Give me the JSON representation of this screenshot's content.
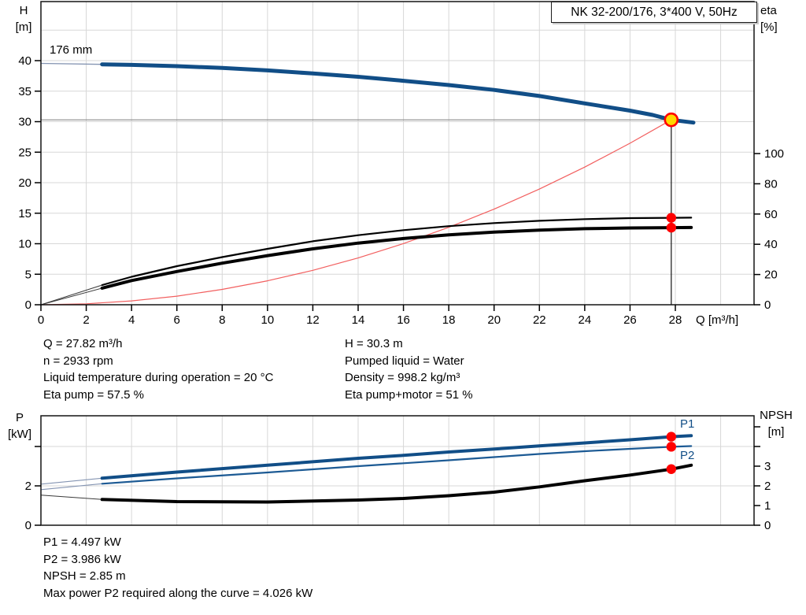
{
  "header": {
    "title_box": "NK 32-200/176, 3*400 V, 50Hz"
  },
  "operating_point": {
    "left_lines": [
      "Q = 27.82 m³/h",
      "n = 2933 rpm",
      "Liquid temperature during operation = 20 °C",
      "Eta pump = 57.5 %"
    ],
    "right_lines": [
      "H = 30.3 m",
      "Pumped liquid = Water",
      "Density = 998.2 kg/m³",
      "Eta pump+motor = 51 %"
    ]
  },
  "power_results": {
    "lines": [
      "P1 = 4.497 kW",
      "P2 = 3.986 kW",
      "NPSH = 2.85 m",
      "Max power P2 required along the curve = 4.026 kW"
    ]
  },
  "colors": {
    "curve_blue": "#114e87",
    "curve_black": "#000000",
    "system_red": "#f25f5f",
    "dot_red": "#ff0000",
    "duty_yellow": "#ffd800",
    "grid": "#d7d7d7",
    "duty_gray": "#8a8a8a"
  },
  "chart_data": [
    {
      "type": "line",
      "name": "qh-eta-chart",
      "title": "NK 32-200/176, 3*400 V, 50Hz",
      "annotation": "176 mm",
      "x_axis": {
        "label": "Q [m³/h]",
        "min": 0,
        "max": 31.5,
        "ticks": [
          0,
          2,
          4,
          6,
          8,
          10,
          12,
          14,
          16,
          18,
          20,
          22,
          24,
          26,
          28
        ],
        "tick_labels": [
          "0",
          "2",
          "4",
          "6",
          "8",
          "10",
          "12",
          "14",
          "16",
          "18",
          "20",
          "22",
          "24",
          "26",
          "28"
        ]
      },
      "y_left": {
        "label": "H",
        "unit": "[m]",
        "min": 0,
        "max": 49.7,
        "ticks": [
          0,
          5,
          10,
          15,
          20,
          25,
          30,
          35,
          40
        ],
        "tick_labels": [
          "0",
          "5",
          "10",
          "15",
          "20",
          "25",
          "30",
          "35",
          "40"
        ],
        "gridlines": [
          5,
          10,
          15,
          20,
          25,
          30,
          35,
          40,
          45
        ]
      },
      "y_right": {
        "label": "eta",
        "unit": "[%]",
        "min": 0,
        "max": 200,
        "ticks": [
          0,
          20,
          40,
          60,
          80,
          100
        ],
        "tick_labels": [
          "0",
          "20",
          "40",
          "60",
          "80",
          "100"
        ]
      },
      "grid_v": [
        2,
        4,
        6,
        8,
        10,
        12,
        14,
        16,
        18,
        20,
        22,
        24,
        26,
        28,
        30
      ],
      "duty_point": {
        "q": 27.82,
        "h": 30.3
      },
      "series": [
        {
          "name": "head-curve-ext",
          "axis": "left",
          "color": "#8494b2",
          "width": 1.3,
          "points": [
            [
              0,
              39.55
            ],
            [
              2.7,
              39.4
            ]
          ]
        },
        {
          "name": "head-curve",
          "axis": "left",
          "color": "#114e87",
          "width": 5,
          "points": [
            [
              2.7,
              39.4
            ],
            [
              4,
              39.3
            ],
            [
              6,
              39.1
            ],
            [
              8,
              38.8
            ],
            [
              10,
              38.4
            ],
            [
              12,
              37.9
            ],
            [
              14,
              37.35
            ],
            [
              16,
              36.7
            ],
            [
              18,
              36.0
            ],
            [
              20,
              35.2
            ],
            [
              22,
              34.2
            ],
            [
              24,
              33.0
            ],
            [
              26,
              31.8
            ],
            [
              27,
              31.1
            ],
            [
              27.82,
              30.3
            ],
            [
              28.8,
              29.85
            ]
          ]
        },
        {
          "name": "system-curve",
          "axis": "left",
          "color": "#f25f5f",
          "width": 1.2,
          "points": [
            [
              0,
              0
            ],
            [
              2,
              0.16
            ],
            [
              4,
              0.63
            ],
            [
              6,
              1.41
            ],
            [
              8,
              2.51
            ],
            [
              10,
              3.92
            ],
            [
              12,
              5.64
            ],
            [
              14,
              7.67
            ],
            [
              16,
              10.02
            ],
            [
              18,
              12.68
            ],
            [
              20,
              15.66
            ],
            [
              22,
              18.95
            ],
            [
              24,
              22.55
            ],
            [
              26,
              26.47
            ],
            [
              27.82,
              30.3
            ]
          ]
        },
        {
          "name": "eta-pump-ext",
          "axis": "right",
          "color": "#3a3a3a",
          "width": 1,
          "points": [
            [
              0,
              0
            ],
            [
              2.7,
              13
            ]
          ]
        },
        {
          "name": "eta-pump-curve",
          "axis": "right",
          "color": "#000000",
          "width": 2.2,
          "points": [
            [
              2.7,
              13
            ],
            [
              4,
              18.5
            ],
            [
              6,
              25.5
            ],
            [
              8,
              31.5
            ],
            [
              10,
              37
            ],
            [
              12,
              42
            ],
            [
              14,
              46
            ],
            [
              16,
              49.3
            ],
            [
              18,
              52
            ],
            [
              20,
              54
            ],
            [
              22,
              55.5
            ],
            [
              24,
              56.6
            ],
            [
              26,
              57.3
            ],
            [
              27.82,
              57.5
            ],
            [
              28.7,
              57.6
            ]
          ]
        },
        {
          "name": "eta-pump-motor-ext",
          "axis": "right",
          "color": "#3a3a3a",
          "width": 1,
          "points": [
            [
              0,
              0
            ],
            [
              2.7,
              11
            ]
          ]
        },
        {
          "name": "eta-pump-motor-curve",
          "axis": "right",
          "color": "#000000",
          "width": 4,
          "points": [
            [
              2.7,
              11
            ],
            [
              4,
              16
            ],
            [
              6,
              22
            ],
            [
              8,
              27.5
            ],
            [
              10,
              32.5
            ],
            [
              12,
              37
            ],
            [
              14,
              40.8
            ],
            [
              16,
              43.8
            ],
            [
              18,
              46.2
            ],
            [
              20,
              48
            ],
            [
              22,
              49.4
            ],
            [
              24,
              50.3
            ],
            [
              26,
              50.8
            ],
            [
              27.82,
              51
            ],
            [
              28.7,
              51.1
            ]
          ]
        }
      ],
      "markers": [
        {
          "name": "duty-point-marker",
          "axis": "left",
          "x": 27.82,
          "y": 30.3,
          "r": 8,
          "fill": "#ffd800",
          "stroke": "#ff0000",
          "stroke_width": 2.6
        },
        {
          "name": "eta-pump-point",
          "axis": "right",
          "x": 27.82,
          "y": 57.5,
          "r": 6.2,
          "fill": "#ff0000"
        },
        {
          "name": "eta-pump-motor-point",
          "axis": "right",
          "x": 27.82,
          "y": 51,
          "r": 6.2,
          "fill": "#ff0000"
        }
      ]
    },
    {
      "type": "line",
      "name": "power-npsh-chart",
      "x_axis": {
        "label": "",
        "min": 0,
        "max": 31.5,
        "ticks": [],
        "tick_labels": []
      },
      "y_left": {
        "label": "P",
        "unit": "[kW]",
        "min": 0,
        "max": 5.56,
        "ticks": [
          0,
          2,
          4
        ],
        "tick_labels": [
          "0",
          "2",
          ""
        ],
        "gridlines": [
          2,
          4
        ]
      },
      "y_right": {
        "label": "NPSH",
        "unit": "[m]",
        "min": 0,
        "max": 5.56,
        "ticks": [
          0,
          1,
          2,
          3,
          4,
          5
        ],
        "tick_labels": [
          "0",
          "1",
          "2",
          "3",
          "",
          ""
        ]
      },
      "grid_v": [
        2,
        4,
        6,
        8,
        10,
        12,
        14,
        16,
        18,
        20,
        22,
        24,
        26,
        28,
        30
      ],
      "series": [
        {
          "name": "p1-curve-ext",
          "axis": "left",
          "color": "#8494b2",
          "width": 1.1,
          "points": [
            [
              0,
              2.09
            ],
            [
              2.7,
              2.39
            ]
          ]
        },
        {
          "name": "p1-curve",
          "axis": "left",
          "color": "#114e87",
          "width": 4,
          "points": [
            [
              2.7,
              2.39
            ],
            [
              6,
              2.7
            ],
            [
              10,
              3.05
            ],
            [
              14,
              3.4
            ],
            [
              16,
              3.55
            ],
            [
              18,
              3.72
            ],
            [
              20,
              3.87
            ],
            [
              22,
              4.03
            ],
            [
              24,
              4.18
            ],
            [
              26,
              4.34
            ],
            [
              27.82,
              4.497
            ],
            [
              28.7,
              4.55
            ]
          ]
        },
        {
          "name": "p2-curve-ext",
          "axis": "left",
          "color": "#8494b2",
          "width": 1.1,
          "points": [
            [
              0,
              1.81
            ],
            [
              2.7,
              2.11
            ]
          ]
        },
        {
          "name": "p2-curve",
          "axis": "left",
          "color": "#1c5a94",
          "width": 2.2,
          "points": [
            [
              2.7,
              2.11
            ],
            [
              6,
              2.38
            ],
            [
              10,
              2.68
            ],
            [
              14,
              3.0
            ],
            [
              16,
              3.15
            ],
            [
              18,
              3.3
            ],
            [
              20,
              3.46
            ],
            [
              22,
              3.62
            ],
            [
              24,
              3.76
            ],
            [
              26,
              3.88
            ],
            [
              27.82,
              3.986
            ],
            [
              28.7,
              4.02
            ]
          ]
        },
        {
          "name": "npsh-curve-ext",
          "axis": "right",
          "color": "#3a3a3a",
          "width": 1,
          "points": [
            [
              0,
              1.53
            ],
            [
              2.7,
              1.31
            ]
          ]
        },
        {
          "name": "npsh-curve",
          "axis": "right",
          "color": "#000000",
          "width": 4,
          "points": [
            [
              2.7,
              1.31
            ],
            [
              6,
              1.2
            ],
            [
              10,
              1.18
            ],
            [
              14,
              1.28
            ],
            [
              16,
              1.36
            ],
            [
              18,
              1.5
            ],
            [
              20,
              1.68
            ],
            [
              22,
              1.95
            ],
            [
              24,
              2.26
            ],
            [
              26,
              2.55
            ],
            [
              27.82,
              2.85
            ],
            [
              28.7,
              3.05
            ]
          ]
        }
      ],
      "markers": [
        {
          "name": "p1-point",
          "axis": "left",
          "x": 27.82,
          "y": 4.497,
          "r": 6.2,
          "fill": "#ff0000"
        },
        {
          "name": "p2-point",
          "axis": "left",
          "x": 27.82,
          "y": 3.986,
          "r": 6.2,
          "fill": "#ff0000"
        },
        {
          "name": "npsh-point",
          "axis": "right",
          "x": 27.82,
          "y": 2.85,
          "r": 6.2,
          "fill": "#ff0000"
        }
      ],
      "curve_labels": [
        {
          "text": "P1"
        },
        {
          "text": "P2"
        }
      ]
    }
  ]
}
